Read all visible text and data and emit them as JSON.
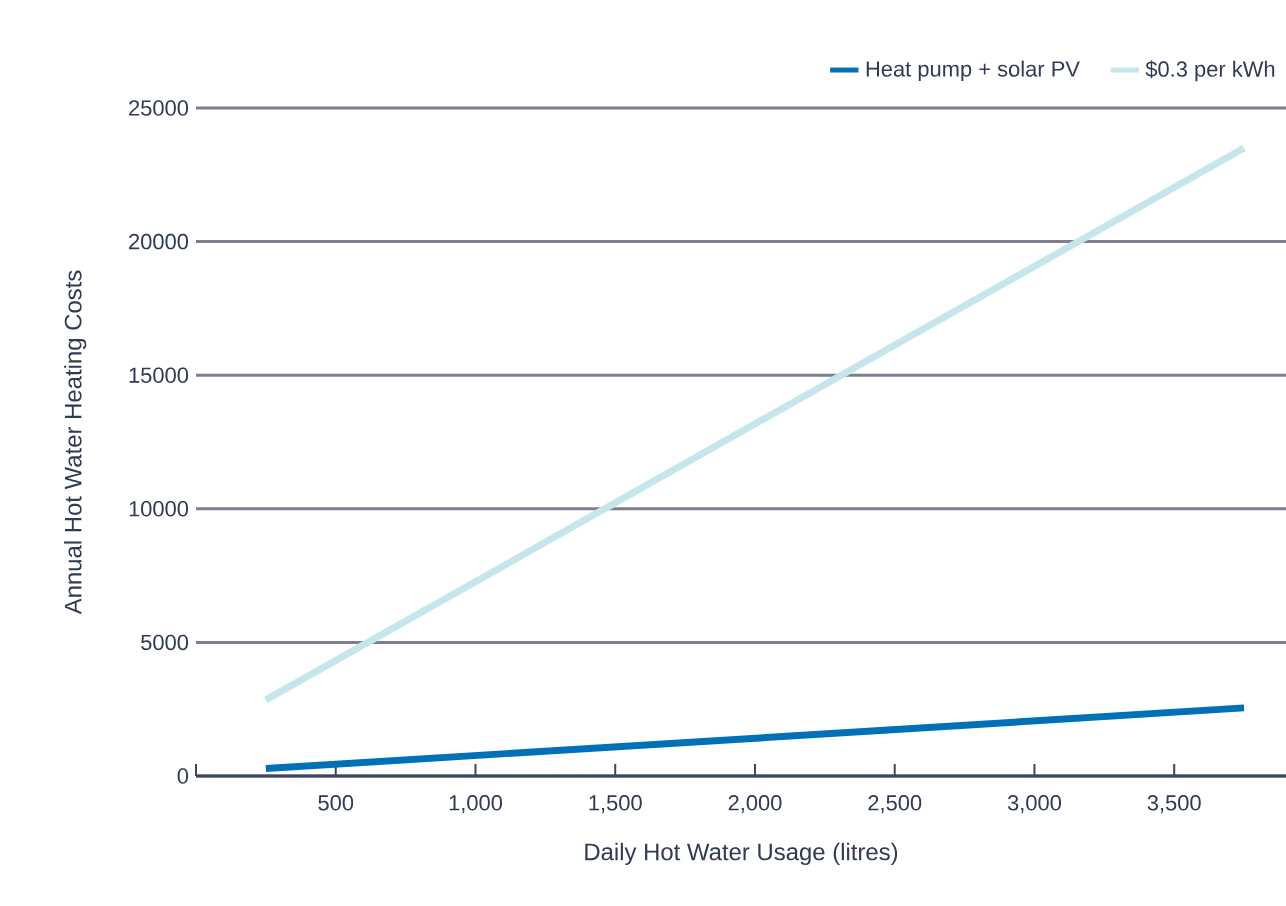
{
  "chart_data": {
    "type": "line",
    "xlabel": "Daily Hot Water Usage (litres)",
    "ylabel": "Annual Hot Water Heating Costs",
    "x": [
      250,
      3750
    ],
    "series": [
      {
        "name": "Heat pump + solar PV",
        "color": "#0070b8",
        "values": [
          280,
          2550
        ]
      },
      {
        "name": "$0.3 per kWh",
        "color": "#c5e6ea",
        "values": [
          2850,
          23500
        ]
      }
    ],
    "xlim": [
      0,
      3900
    ],
    "xticks": [
      {
        "value": 0,
        "label": null
      },
      500,
      {
        "value": 1000,
        "label": "1,000"
      },
      {
        "value": 1500,
        "label": "1,500"
      },
      {
        "value": 2000,
        "label": "2,000"
      },
      {
        "value": 2500,
        "label": "2,500"
      },
      {
        "value": 3000,
        "label": "3,000"
      },
      {
        "value": 3500,
        "label": "3,500"
      }
    ],
    "ylim": [
      0,
      25000
    ],
    "yticks": [
      0,
      5000,
      10000,
      15000,
      20000,
      25000
    ],
    "grid": "y",
    "legend": "top right",
    "marker": "none",
    "line_style": "solid"
  }
}
